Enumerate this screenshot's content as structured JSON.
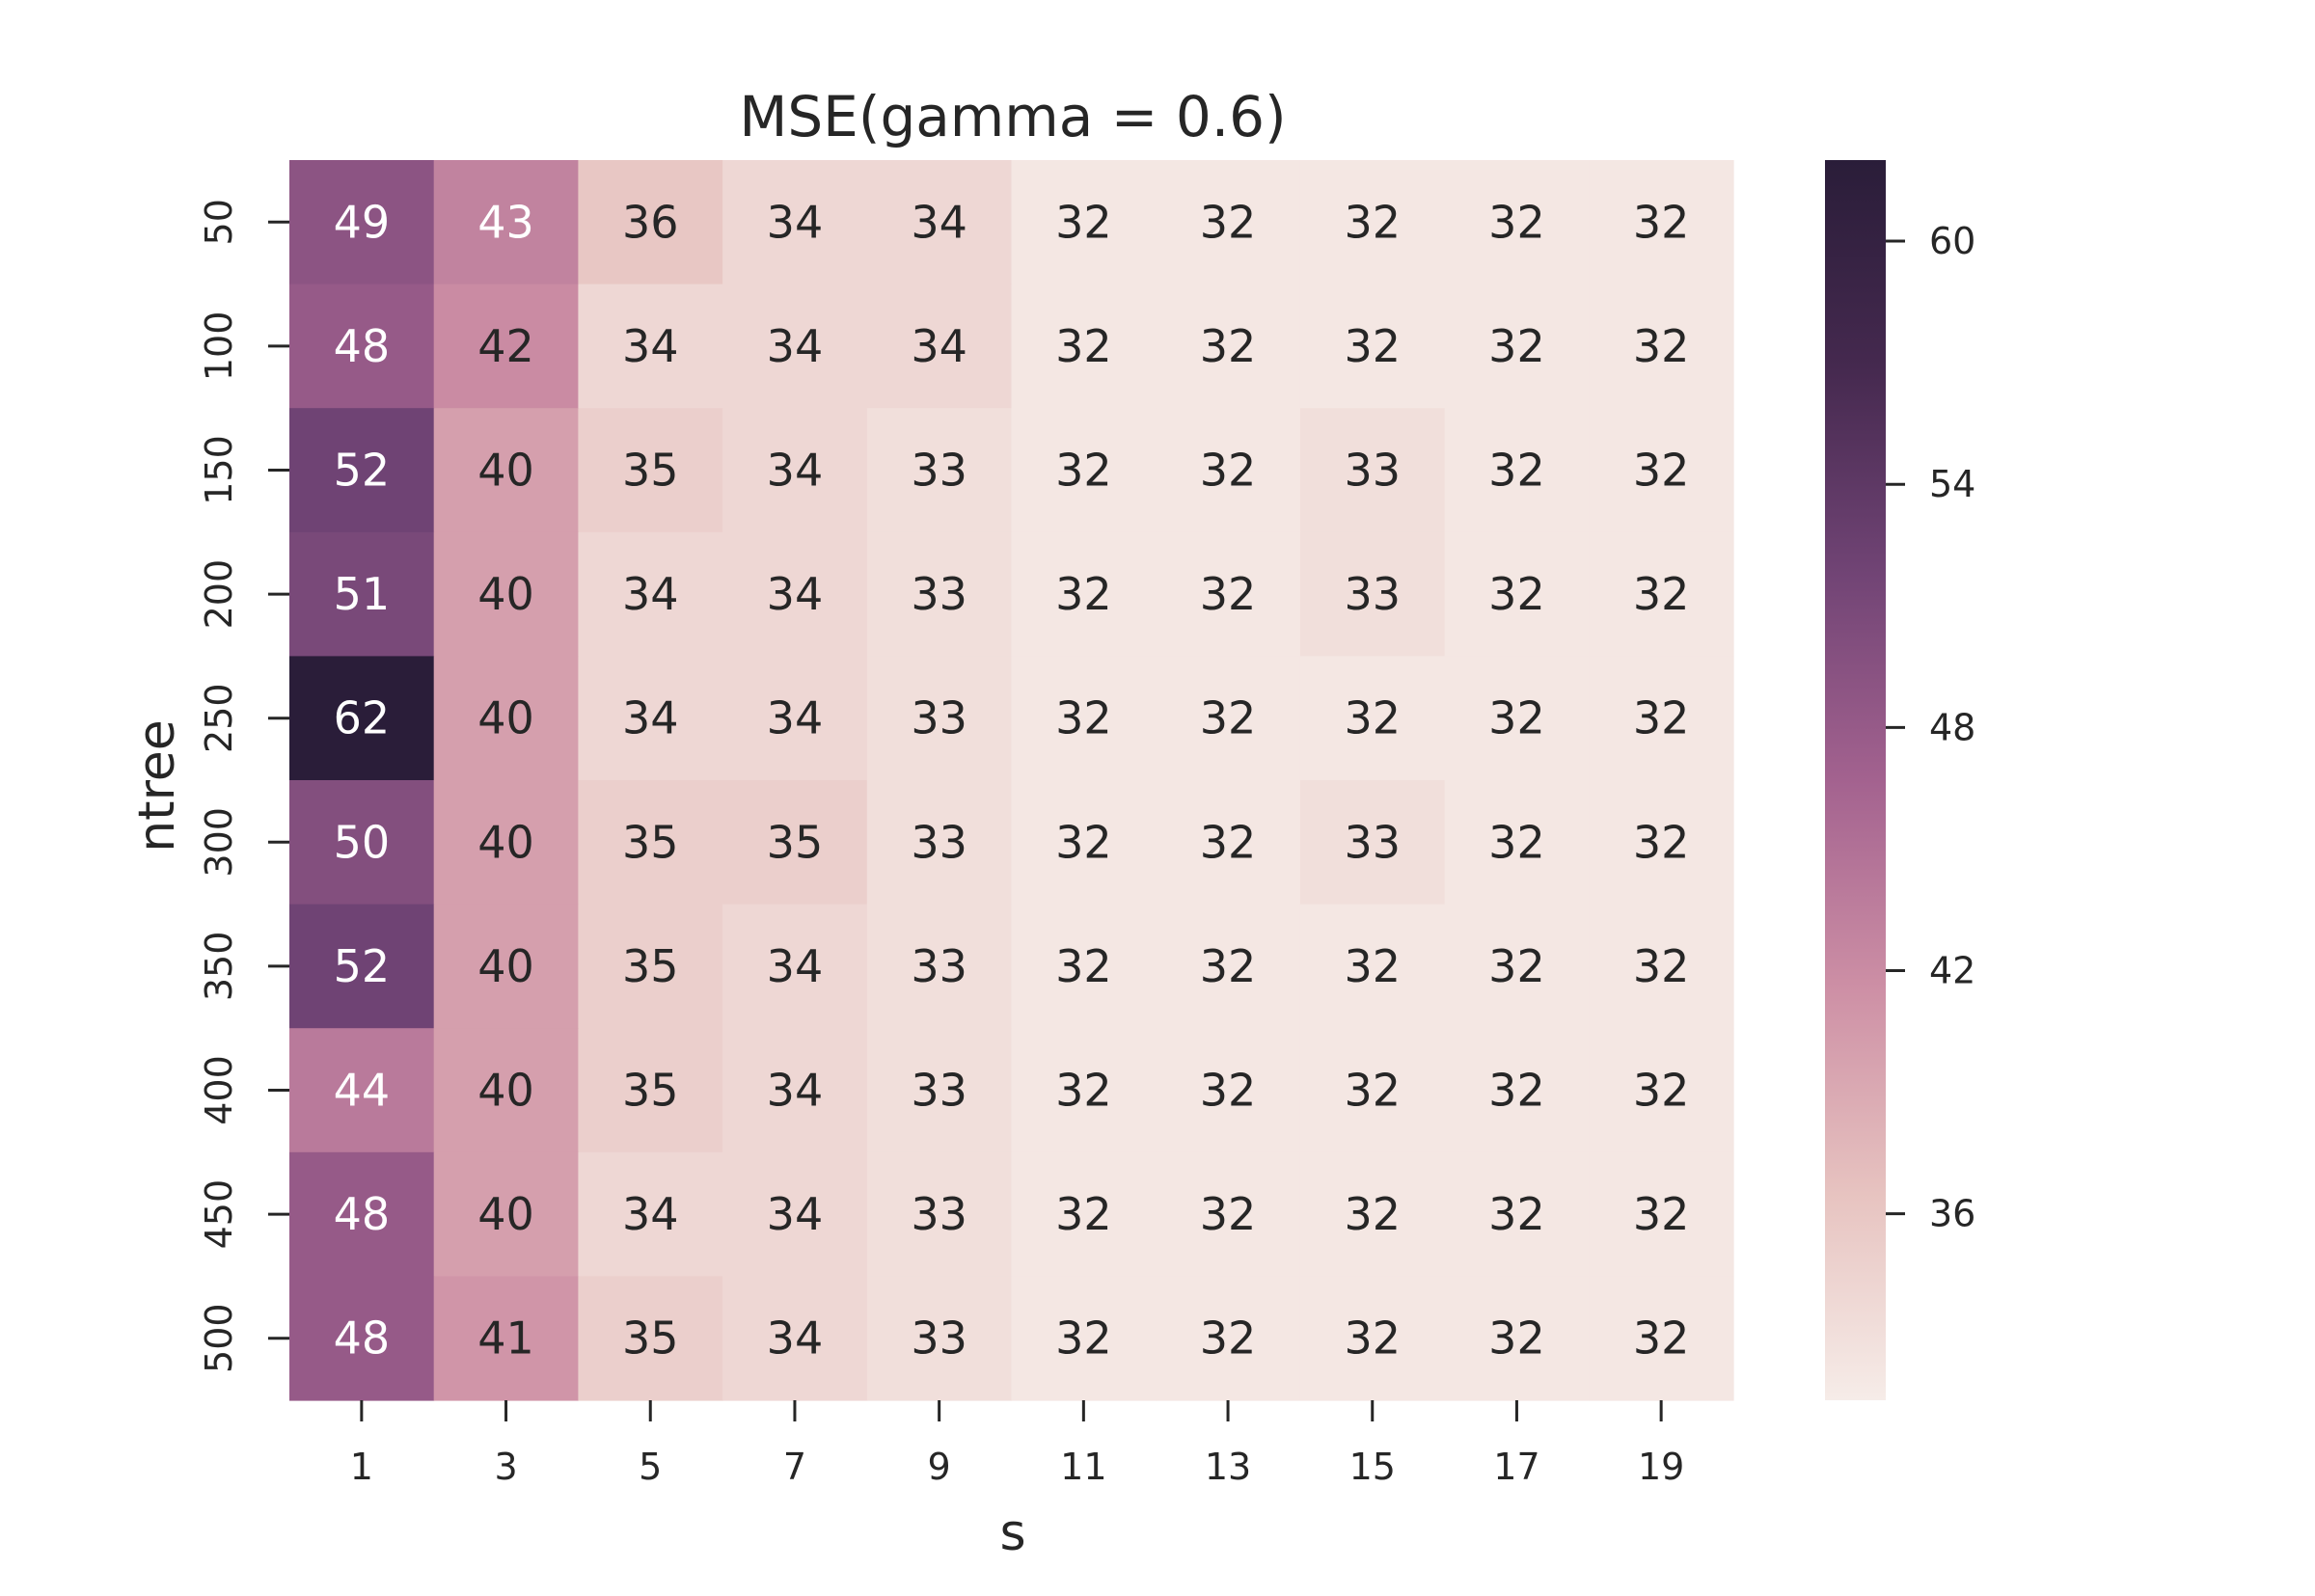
{
  "chart_data": {
    "type": "heatmap",
    "title": "MSE(gamma = 0.6)",
    "xlabel": "s",
    "ylabel": "ntree",
    "x_categories": [
      "1",
      "3",
      "5",
      "7",
      "9",
      "11",
      "13",
      "15",
      "17",
      "19"
    ],
    "y_categories": [
      "50",
      "100",
      "150",
      "200",
      "250",
      "300",
      "350",
      "400",
      "450",
      "500"
    ],
    "values": [
      [
        49,
        43,
        36,
        34,
        34,
        32,
        32,
        32,
        32,
        32
      ],
      [
        48,
        42,
        34,
        34,
        34,
        32,
        32,
        32,
        32,
        32
      ],
      [
        52,
        40,
        35,
        34,
        33,
        32,
        32,
        33,
        32,
        32
      ],
      [
        51,
        40,
        34,
        34,
        33,
        32,
        32,
        33,
        32,
        32
      ],
      [
        62,
        40,
        34,
        34,
        33,
        32,
        32,
        32,
        32,
        32
      ],
      [
        50,
        40,
        35,
        35,
        33,
        32,
        32,
        33,
        32,
        32
      ],
      [
        52,
        40,
        35,
        34,
        33,
        32,
        32,
        32,
        32,
        32
      ],
      [
        44,
        40,
        35,
        34,
        33,
        32,
        32,
        32,
        32,
        32
      ],
      [
        48,
        40,
        34,
        34,
        33,
        32,
        32,
        32,
        32,
        32
      ],
      [
        48,
        41,
        35,
        34,
        33,
        32,
        32,
        32,
        32,
        32
      ]
    ],
    "annotations_visible": true,
    "colorbar": {
      "ticks": [
        60,
        54,
        48,
        42,
        36
      ],
      "vmin": 31.4,
      "vmax": 62.0,
      "placement": "right"
    },
    "colormap": {
      "low": "#f6ece8",
      "stops": [
        "#f6ece8",
        "#e7c3c0",
        "#cd8fa5",
        "#a3628f",
        "#714475",
        "#45294f",
        "#2a1d39"
      ],
      "high": "#2a1d39"
    }
  }
}
